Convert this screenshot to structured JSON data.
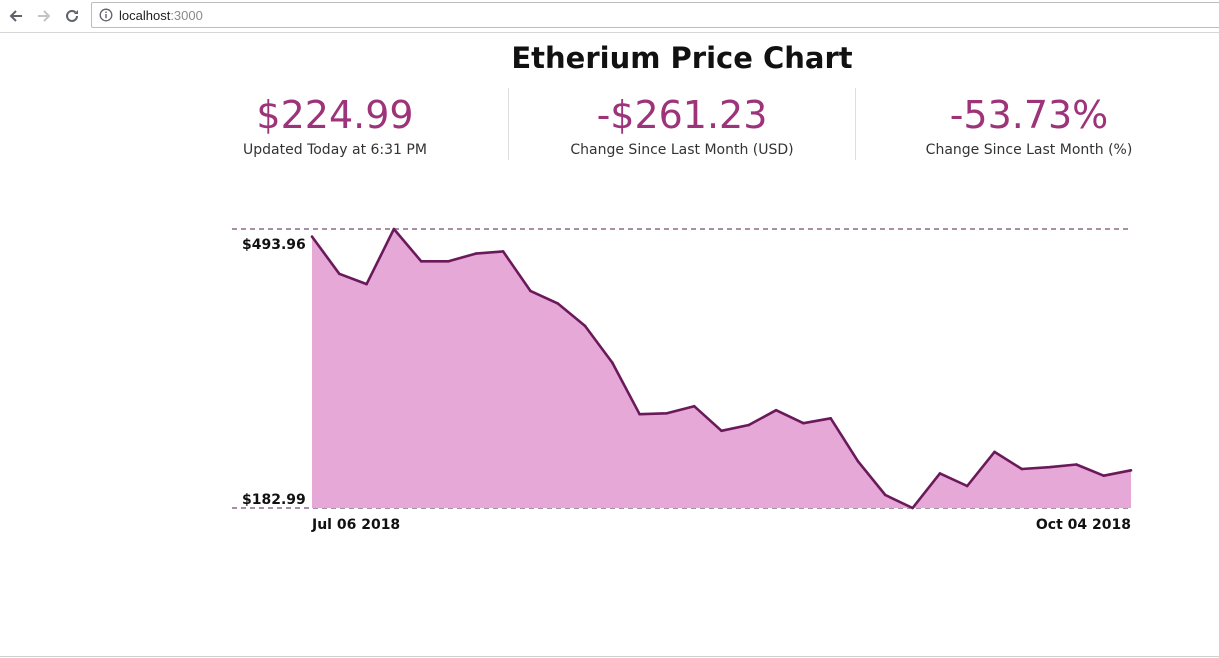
{
  "browser": {
    "url_host": "localhost",
    "url_port": ":3000",
    "icons": {
      "back": "arrow-left-icon",
      "forward": "arrow-right-icon",
      "reload": "reload-icon",
      "info": "info-circle-icon"
    }
  },
  "page": {
    "title": "Etherium Price Chart"
  },
  "stats": [
    {
      "value": "$224.99",
      "label": "Updated Today at 6:31 PM"
    },
    {
      "value": "-$261.23",
      "label": "Change Since Last Month (USD)"
    },
    {
      "value": "-53.73%",
      "label": "Change Since Last Month (%)"
    }
  ],
  "colors": {
    "accent": "#9d3379",
    "area_fill": "#e6a8d6",
    "line": "#6a1a5a",
    "guide": "#8c6a8c"
  },
  "chart_data": {
    "type": "area",
    "title": "",
    "xlabel": "",
    "ylabel": "",
    "y_max_label": "$493.96",
    "y_min_label": "$182.99",
    "x_start_label": "Jul 06 2018",
    "x_end_label": "Oct 04 2018",
    "ylim": [
      182.99,
      493.96
    ],
    "grid": false,
    "series": [
      {
        "values": [
          485.5,
          444,
          432.5,
          493.96,
          458,
          458,
          466.5,
          469,
          425,
          411,
          386,
          345,
          287.5,
          288.5,
          296.5,
          269,
          275.5,
          292,
          277.5,
          283,
          235,
          197.5,
          182.99,
          221.5,
          207.5,
          245.5,
          226.5,
          228.5,
          231.5,
          219,
          224.99
        ]
      }
    ]
  }
}
